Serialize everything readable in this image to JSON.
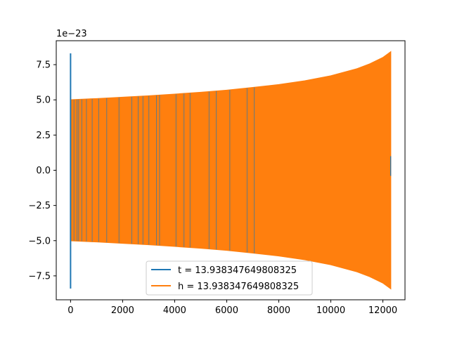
{
  "chart_data": {
    "type": "line",
    "title": "",
    "xlabel": "",
    "ylabel": "",
    "y_offset_label": "1e−23",
    "xlim": [
      -550,
      12850
    ],
    "ylim": [
      -9.2,
      9.2
    ],
    "x_ticks": [
      0,
      2000,
      4000,
      6000,
      8000,
      10000,
      12000
    ],
    "x_tick_labels": [
      "0",
      "2000",
      "4000",
      "6000",
      "8000",
      "10000",
      "12000"
    ],
    "y_ticks": [
      -7.5,
      -5.0,
      -2.5,
      0.0,
      2.5,
      5.0,
      7.5
    ],
    "y_tick_labels": [
      "−7.5",
      "−5.0",
      "−2.5",
      "0.0",
      "2.5",
      "5.0",
      "7.5"
    ],
    "grid": false,
    "legend_position": "lower center",
    "series": [
      {
        "name": "t = 13.938347649808325",
        "color": "#1f77b4",
        "envelope_x": [
          0,
          12300
        ],
        "envelope_upper": [
          8.3,
          8.3
        ],
        "envelope_lower": [
          -8.4,
          -8.4
        ],
        "note_values": [
          5.0,
          8.3,
          -8.4
        ]
      },
      {
        "name": "h = 13.938347649808325",
        "color": "#ff7f0e",
        "envelope_x": [
          0,
          1000,
          2000,
          3000,
          4000,
          5000,
          6000,
          7000,
          8000,
          9000,
          10000,
          11000,
          11500,
          12000,
          12300
        ],
        "envelope_upper": [
          5.0,
          5.08,
          5.18,
          5.28,
          5.4,
          5.53,
          5.68,
          5.87,
          6.08,
          6.35,
          6.7,
          7.2,
          7.55,
          8.0,
          8.4
        ],
        "envelope_lower": [
          -5.0,
          -5.08,
          -5.18,
          -5.28,
          -5.4,
          -5.53,
          -5.68,
          -5.87,
          -6.08,
          -6.35,
          -6.7,
          -7.2,
          -7.55,
          -8.0,
          -8.4
        ]
      }
    ],
    "visible_blue_x": [
      0,
      130,
      250,
      310,
      430,
      610,
      830,
      1080,
      1390,
      1860,
      2350,
      2600,
      2780,
      3010,
      3300,
      3420,
      4050,
      4360,
      4590,
      5320,
      5600,
      6120,
      6780,
      7060
    ]
  }
}
